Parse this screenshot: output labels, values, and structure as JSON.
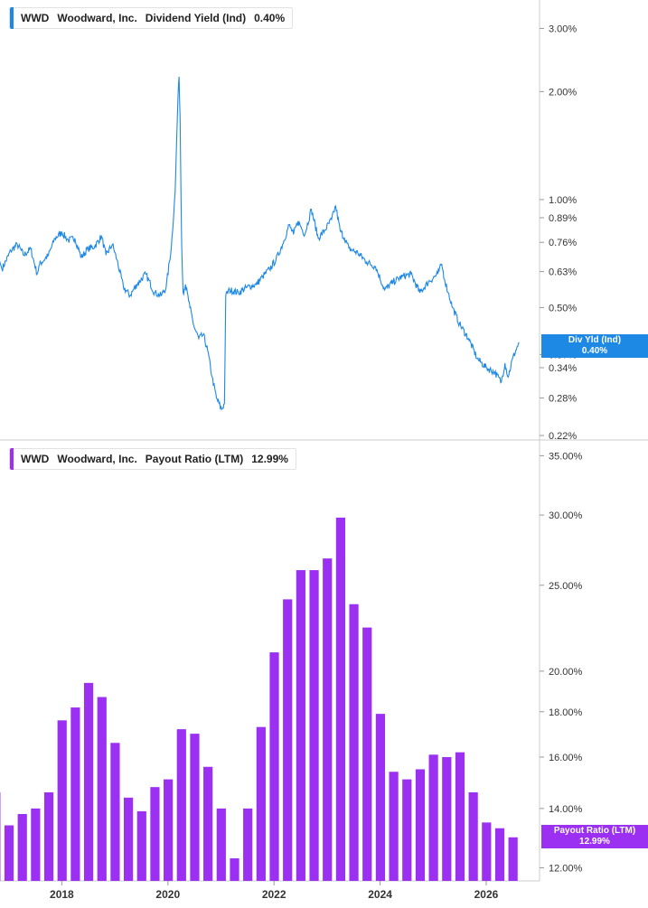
{
  "panels": [
    {
      "ticker": "WWD",
      "company": "Woodward, Inc.",
      "metric": "Dividend Yield (Ind)",
      "value": "0.40%",
      "flag_label": "Div Yld (Ind)",
      "flag_value": "0.40%"
    },
    {
      "ticker": "WWD",
      "company": "Woodward, Inc.",
      "metric": "Payout Ratio (LTM)",
      "value": "12.99%",
      "flag_label": "Payout Ratio (LTM)",
      "flag_value": "12.99%"
    }
  ],
  "colors": {
    "yield": "#1e88e5",
    "payout": "#9b30f2",
    "axis": "#cccccc",
    "text": "#333333"
  },
  "chart_data": [
    {
      "type": "line",
      "name": "Dividend Yield (Ind)",
      "yscale": "log",
      "ylim": [
        0.215,
        3.6
      ],
      "yticks": [
        "3.00%",
        "2.00%",
        "1.00%",
        "0.89%",
        "0.76%",
        "0.63%",
        "0.50%",
        "0.37%",
        "0.34%",
        "0.28%",
        "0.22%"
      ],
      "ytick_values": [
        3.0,
        2.0,
        1.0,
        0.89,
        0.76,
        0.63,
        0.5,
        0.37,
        0.34,
        0.28,
        0.22
      ],
      "xlim": [
        "2016-10-01",
        "2026-08-15"
      ],
      "points": [
        [
          "2016-10-01",
          0.74
        ],
        [
          "2016-11-15",
          0.64
        ],
        [
          "2017-01-15",
          0.72
        ],
        [
          "2017-03-01",
          0.75
        ],
        [
          "2017-04-15",
          0.7
        ],
        [
          "2017-06-01",
          0.73
        ],
        [
          "2017-07-15",
          0.62
        ],
        [
          "2017-08-01",
          0.66
        ],
        [
          "2017-10-01",
          0.7
        ],
        [
          "2017-11-15",
          0.78
        ],
        [
          "2018-01-01",
          0.81
        ],
        [
          "2018-02-15",
          0.77
        ],
        [
          "2018-04-01",
          0.78
        ],
        [
          "2018-05-15",
          0.69
        ],
        [
          "2018-07-01",
          0.73
        ],
        [
          "2018-08-15",
          0.74
        ],
        [
          "2018-10-01",
          0.79
        ],
        [
          "2018-11-01",
          0.7
        ],
        [
          "2018-12-15",
          0.75
        ],
        [
          "2019-01-15",
          0.68
        ],
        [
          "2019-03-01",
          0.57
        ],
        [
          "2019-04-15",
          0.54
        ],
        [
          "2019-06-01",
          0.58
        ],
        [
          "2019-08-01",
          0.62
        ],
        [
          "2019-10-01",
          0.55
        ],
        [
          "2019-11-15",
          0.54
        ],
        [
          "2019-12-20",
          0.57
        ],
        [
          "2020-01-25",
          0.74
        ],
        [
          "2020-02-20",
          1.05
        ],
        [
          "2020-03-01",
          1.45
        ],
        [
          "2020-03-10",
          1.9
        ],
        [
          "2020-03-18",
          2.2
        ],
        [
          "2020-03-25",
          1.7
        ],
        [
          "2020-04-01",
          0.98
        ],
        [
          "2020-04-05",
          0.75
        ],
        [
          "2020-04-15",
          0.55
        ],
        [
          "2020-05-01",
          0.58
        ],
        [
          "2020-06-01",
          0.5
        ],
        [
          "2020-07-01",
          0.44
        ],
        [
          "2020-08-01",
          0.41
        ],
        [
          "2020-09-01",
          0.42
        ],
        [
          "2020-10-01",
          0.38
        ],
        [
          "2020-11-01",
          0.32
        ],
        [
          "2020-12-01",
          0.28
        ],
        [
          "2021-01-05",
          0.26
        ],
        [
          "2021-01-25",
          0.27
        ],
        [
          "2021-02-03",
          0.54
        ],
        [
          "2021-03-01",
          0.56
        ],
        [
          "2021-05-01",
          0.55
        ],
        [
          "2021-07-01",
          0.57
        ],
        [
          "2021-09-01",
          0.58
        ],
        [
          "2021-10-15",
          0.61
        ],
        [
          "2021-12-01",
          0.64
        ],
        [
          "2022-01-15",
          0.68
        ],
        [
          "2022-03-01",
          0.75
        ],
        [
          "2022-04-15",
          0.85
        ],
        [
          "2022-05-15",
          0.8
        ],
        [
          "2022-06-15",
          0.87
        ],
        [
          "2022-08-01",
          0.8
        ],
        [
          "2022-09-15",
          0.94
        ],
        [
          "2022-11-01",
          0.78
        ],
        [
          "2022-12-15",
          0.82
        ],
        [
          "2023-02-01",
          0.88
        ],
        [
          "2023-03-01",
          0.96
        ],
        [
          "2023-04-01",
          0.82
        ],
        [
          "2023-05-01",
          0.78
        ],
        [
          "2023-06-01",
          0.73
        ],
        [
          "2023-08-01",
          0.71
        ],
        [
          "2023-10-01",
          0.67
        ],
        [
          "2023-12-01",
          0.65
        ],
        [
          "2024-02-01",
          0.56
        ],
        [
          "2024-04-01",
          0.59
        ],
        [
          "2024-06-01",
          0.61
        ],
        [
          "2024-08-01",
          0.62
        ],
        [
          "2024-10-01",
          0.55
        ],
        [
          "2024-12-01",
          0.59
        ],
        [
          "2025-02-01",
          0.62
        ],
        [
          "2025-03-01",
          0.66
        ],
        [
          "2025-03-20",
          0.6
        ],
        [
          "2025-04-15",
          0.55
        ],
        [
          "2025-05-15",
          0.5
        ],
        [
          "2025-07-01",
          0.45
        ],
        [
          "2025-09-01",
          0.41
        ],
        [
          "2025-11-01",
          0.36
        ],
        [
          "2026-01-01",
          0.34
        ],
        [
          "2026-03-01",
          0.33
        ],
        [
          "2026-04-15",
          0.31
        ],
        [
          "2026-05-10",
          0.35
        ],
        [
          "2026-06-01",
          0.32
        ],
        [
          "2026-07-01",
          0.36
        ],
        [
          "2026-08-15",
          0.4
        ]
      ]
    },
    {
      "type": "bar",
      "name": "Payout Ratio (LTM)",
      "ylim": [
        11.6,
        36.2
      ],
      "yscale": "log",
      "yticks": [
        "35.00%",
        "30.00%",
        "25.00%",
        "20.00%",
        "18.00%",
        "16.00%",
        "14.00%",
        "12.00%"
      ],
      "ytick_values": [
        35,
        30,
        25,
        20,
        18,
        16,
        14,
        12
      ],
      "x": [
        "2016-Q4",
        "2017-Q1",
        "2017-Q2",
        "2017-Q3",
        "2017-Q4",
        "2018-Q1",
        "2018-Q2",
        "2018-Q3",
        "2018-Q4",
        "2019-Q1",
        "2019-Q2",
        "2019-Q3",
        "2019-Q4",
        "2020-Q1",
        "2020-Q2",
        "2020-Q3",
        "2020-Q4",
        "2021-Q1",
        "2021-Q2",
        "2021-Q3",
        "2021-Q4",
        "2022-Q1",
        "2022-Q2",
        "2022-Q3",
        "2022-Q4",
        "2023-Q1",
        "2023-Q2",
        "2023-Q3",
        "2023-Q4",
        "2024-Q1",
        "2024-Q2",
        "2024-Q3",
        "2024-Q4",
        "2025-Q1",
        "2025-Q2",
        "2025-Q3",
        "2025-Q4",
        "2026-Q1",
        "2026-Q2",
        "2026-Q3"
      ],
      "values": [
        14.6,
        13.4,
        13.8,
        14.0,
        14.6,
        17.6,
        18.2,
        19.4,
        18.7,
        16.6,
        14.4,
        13.9,
        14.8,
        15.1,
        17.2,
        17.0,
        15.6,
        14.0,
        12.3,
        14.0,
        17.3,
        21.0,
        24.1,
        26.0,
        26.0,
        26.8,
        29.8,
        23.8,
        22.4,
        17.9,
        15.4,
        15.1,
        15.5,
        16.1,
        16.0,
        16.2,
        14.6,
        13.5,
        13.3,
        12.99
      ]
    }
  ],
  "x_axis": {
    "ticks": [
      "2018",
      "2020",
      "2022",
      "2024",
      "2026"
    ]
  }
}
